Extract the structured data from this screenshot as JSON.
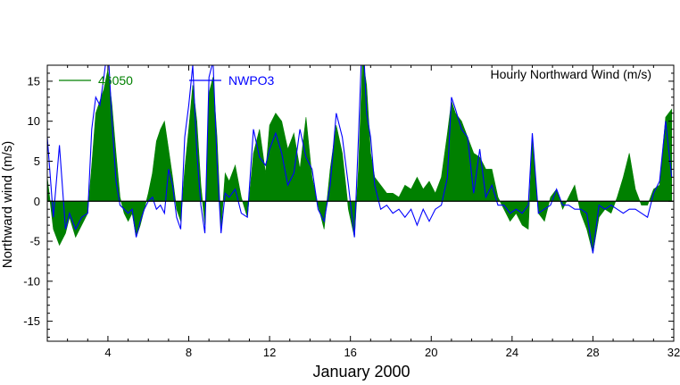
{
  "chart_data": {
    "type": "area",
    "title": "Hourly Northward Wind (m/s)",
    "xlabel": "January 2000",
    "ylabel": "Northward wind (m/s)",
    "xlim": [
      1,
      32
    ],
    "ylim": [
      -17.5,
      17
    ],
    "xticks": [
      4,
      8,
      12,
      16,
      20,
      24,
      28,
      32
    ],
    "yticks": [
      -15,
      -10,
      -5,
      0,
      5,
      10,
      15
    ],
    "grid": false,
    "legend_position": "top-left",
    "series": [
      {
        "name": "46050",
        "style": "filled-area",
        "color": "#008000",
        "x": [
          1.0,
          1.3,
          1.6,
          1.9,
          2.1,
          2.4,
          2.7,
          3.0,
          3.2,
          3.4,
          3.6,
          3.8,
          4.0,
          4.2,
          4.4,
          4.6,
          4.8,
          5.0,
          5.2,
          5.4,
          5.6,
          5.8,
          6.0,
          6.2,
          6.4,
          6.6,
          6.8,
          7.0,
          7.2,
          7.4,
          7.6,
          7.8,
          8.0,
          8.2,
          8.4,
          8.6,
          8.8,
          9.0,
          9.2,
          9.4,
          9.6,
          9.8,
          10.0,
          10.3,
          10.6,
          10.9,
          11.2,
          11.5,
          11.8,
          12.0,
          12.3,
          12.6,
          12.9,
          13.2,
          13.5,
          13.8,
          14.1,
          14.4,
          14.7,
          15.0,
          15.3,
          15.6,
          15.9,
          16.2,
          16.4,
          16.6,
          16.8,
          17.0,
          17.2,
          17.5,
          17.8,
          18.1,
          18.4,
          18.7,
          19.0,
          19.3,
          19.6,
          19.9,
          20.2,
          20.5,
          20.8,
          21.0,
          21.2,
          21.5,
          21.8,
          22.1,
          22.4,
          22.7,
          23.0,
          23.3,
          23.6,
          23.9,
          24.2,
          24.5,
          24.8,
          25.0,
          25.3,
          25.6,
          25.9,
          26.2,
          26.5,
          26.8,
          27.1,
          27.4,
          27.7,
          28.0,
          28.3,
          28.6,
          28.9,
          29.2,
          29.5,
          29.8,
          30.1,
          30.4,
          30.7,
          31.0,
          31.3,
          31.6,
          31.9
        ],
        "values": [
          3.0,
          -3.5,
          -5.5,
          -4.0,
          -2.0,
          -4.5,
          -3.0,
          -1.5,
          4.5,
          11.0,
          12.5,
          14.0,
          16.5,
          12.0,
          6.0,
          0.5,
          -1.5,
          -2.5,
          -1.5,
          -4.5,
          -3.0,
          -1.0,
          1.0,
          3.5,
          7.5,
          9.0,
          10.0,
          6.5,
          3.0,
          -1.0,
          -2.5,
          4.0,
          9.0,
          14.5,
          10.0,
          2.0,
          -3.0,
          13.5,
          15.5,
          8.0,
          -3.5,
          3.5,
          2.5,
          4.5,
          0.5,
          -2.0,
          6.0,
          9.0,
          3.5,
          9.5,
          11.0,
          10.0,
          6.5,
          8.5,
          4.0,
          10.5,
          3.0,
          -0.5,
          -3.5,
          4.0,
          9.5,
          6.0,
          -1.0,
          -4.5,
          4.0,
          18.0,
          14.5,
          6.0,
          3.0,
          2.0,
          1.0,
          1.0,
          0.5,
          2.0,
          1.5,
          3.0,
          1.5,
          2.5,
          1.0,
          3.0,
          8.5,
          12.5,
          11.0,
          10.0,
          8.0,
          6.0,
          5.5,
          4.0,
          4.0,
          0.5,
          -1.0,
          -2.5,
          -1.5,
          -3.0,
          -3.5,
          8.0,
          -1.5,
          -2.5,
          0.5,
          1.5,
          -1.0,
          0.5,
          2.0,
          -1.5,
          -3.5,
          -6.5,
          -2.0,
          -1.0,
          -1.5,
          0.5,
          3.0,
          6.0,
          1.5,
          -0.5,
          -0.5,
          1.5,
          2.0,
          10.5,
          11.5
        ]
      },
      {
        "name": "NWPO3",
        "style": "line",
        "color": "#0000ff",
        "x": [
          1.0,
          1.3,
          1.6,
          1.9,
          2.1,
          2.4,
          2.7,
          3.0,
          3.2,
          3.4,
          3.6,
          3.8,
          4.0,
          4.2,
          4.4,
          4.6,
          4.8,
          5.0,
          5.2,
          5.4,
          5.6,
          5.8,
          6.0,
          6.2,
          6.4,
          6.6,
          6.8,
          7.0,
          7.2,
          7.4,
          7.6,
          7.8,
          8.0,
          8.2,
          8.4,
          8.6,
          8.8,
          9.0,
          9.2,
          9.4,
          9.6,
          9.8,
          10.0,
          10.3,
          10.6,
          10.9,
          11.2,
          11.5,
          11.8,
          12.0,
          12.3,
          12.6,
          12.9,
          13.2,
          13.5,
          13.8,
          14.1,
          14.4,
          14.7,
          15.0,
          15.3,
          15.6,
          15.9,
          16.2,
          16.4,
          16.6,
          16.8,
          17.0,
          17.2,
          17.5,
          17.8,
          18.1,
          18.4,
          18.7,
          19.0,
          19.3,
          19.6,
          19.9,
          20.2,
          20.5,
          20.8,
          21.0,
          21.2,
          21.5,
          21.8,
          22.1,
          22.4,
          22.7,
          23.0,
          23.3,
          23.6,
          23.9,
          24.2,
          24.5,
          24.8,
          25.0,
          25.3,
          25.6,
          25.9,
          26.2,
          26.5,
          26.8,
          27.1,
          27.4,
          27.7,
          28.0,
          28.3,
          28.6,
          28.9,
          29.2,
          29.5,
          29.8,
          30.1,
          30.4,
          30.7,
          31.0,
          31.3,
          31.6,
          31.9
        ],
        "values": [
          8.0,
          -2.0,
          7.0,
          -3.5,
          -1.5,
          -3.5,
          -2.0,
          -1.5,
          9.0,
          13.0,
          12.0,
          15.5,
          19.5,
          10.0,
          2.5,
          -0.5,
          -1.0,
          -1.5,
          -1.0,
          -4.5,
          -2.5,
          -1.0,
          0.0,
          0.5,
          -1.0,
          -0.5,
          -1.5,
          4.0,
          2.0,
          -2.0,
          -3.5,
          8.0,
          12.0,
          17.0,
          6.0,
          -0.5,
          -4.0,
          15.5,
          17.5,
          5.0,
          -4.0,
          1.0,
          0.5,
          1.5,
          -1.5,
          -2.0,
          9.0,
          5.5,
          4.5,
          6.5,
          8.5,
          6.0,
          2.0,
          3.5,
          9.0,
          5.5,
          4.0,
          -1.0,
          -2.5,
          2.0,
          11.0,
          8.0,
          2.0,
          -4.5,
          8.0,
          22.0,
          11.0,
          8.0,
          2.0,
          -1.0,
          -0.5,
          -1.5,
          -1.0,
          -2.0,
          -1.0,
          -3.0,
          -1.0,
          -2.5,
          -1.0,
          -0.5,
          3.0,
          13.0,
          11.5,
          9.0,
          8.0,
          1.0,
          6.5,
          0.5,
          2.0,
          -0.5,
          -0.5,
          -1.5,
          -1.0,
          -1.5,
          -0.5,
          8.5,
          -1.5,
          -1.0,
          -0.5,
          1.5,
          -0.5,
          -0.5,
          -1.0,
          -1.0,
          -1.5,
          -6.5,
          -0.5,
          -1.0,
          -0.5,
          -1.0,
          -1.5,
          -1.0,
          -1.0,
          -1.5,
          -2.0,
          1.0,
          2.5,
          10.0,
          3.0
        ]
      }
    ]
  }
}
